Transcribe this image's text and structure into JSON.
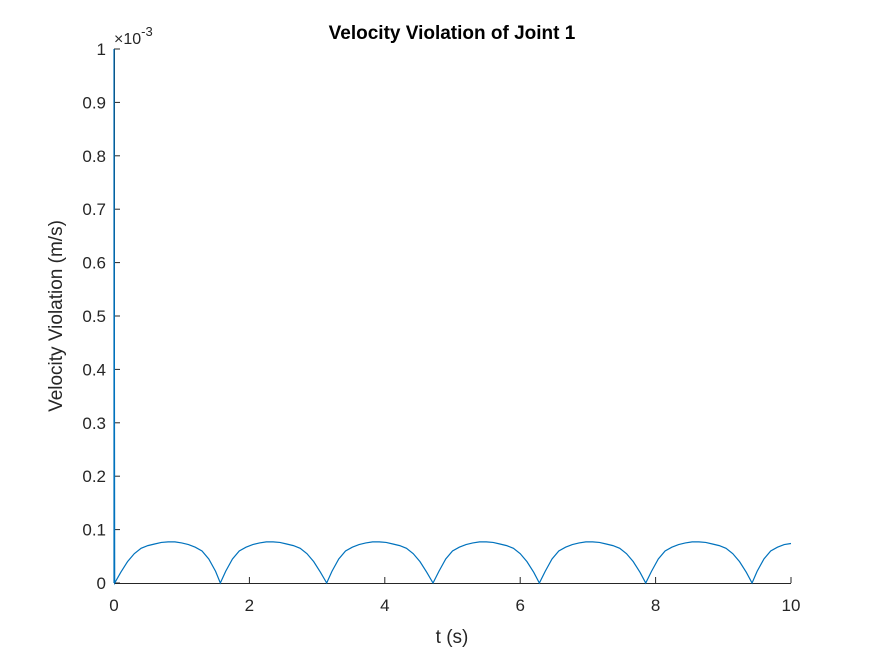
{
  "chart_data": {
    "type": "line",
    "title": "Velocity Violation of Joint 1",
    "xlabel": "t (s)",
    "ylabel": "Velocity Violation (m/s)",
    "y_exponent_label": "×10",
    "y_exponent_power": "-3",
    "y_scale": 0.001,
    "xlim": [
      0,
      10
    ],
    "ylim": [
      0,
      1
    ],
    "x_ticks": [
      "0",
      "2",
      "4",
      "6",
      "8",
      "10"
    ],
    "y_ticks": [
      "0",
      "0.1",
      "0.2",
      "0.3",
      "0.4",
      "0.5",
      "0.6",
      "0.7",
      "0.8",
      "0.9",
      "1"
    ],
    "grid": false,
    "line_color": "#0072BD",
    "series": [
      {
        "x": [
          0,
          0,
          0.01,
          0.1,
          0.2,
          0.3,
          0.4,
          0.5,
          0.6,
          0.7,
          0.8,
          0.9,
          1.0,
          1.1,
          1.2,
          1.3,
          1.4,
          1.5,
          1.5708,
          1.65,
          1.75,
          1.85,
          1.95,
          2.05,
          2.15,
          2.25,
          2.35,
          2.45,
          2.55,
          2.65,
          2.75,
          2.85,
          2.95,
          3.05,
          3.1416,
          3.22,
          3.32,
          3.42,
          3.52,
          3.62,
          3.72,
          3.82,
          3.92,
          4.02,
          4.12,
          4.22,
          4.32,
          4.42,
          4.52,
          4.62,
          4.7124,
          4.8,
          4.9,
          5.0,
          5.1,
          5.2,
          5.3,
          5.4,
          5.5,
          5.6,
          5.7,
          5.8,
          5.9,
          6.0,
          6.1,
          6.2,
          6.2832,
          6.37,
          6.47,
          6.57,
          6.67,
          6.77,
          6.87,
          6.97,
          7.07,
          7.17,
          7.27,
          7.37,
          7.47,
          7.57,
          7.67,
          7.77,
          7.854,
          7.94,
          8.04,
          8.14,
          8.24,
          8.34,
          8.44,
          8.54,
          8.64,
          8.74,
          8.84,
          8.94,
          9.04,
          9.14,
          9.24,
          9.34,
          9.4248,
          9.5,
          9.6,
          9.7,
          9.8,
          9.9,
          10.0
        ],
        "y": [
          0,
          1.0,
          0.0,
          0.02,
          0.04,
          0.055,
          0.065,
          0.07,
          0.073,
          0.076,
          0.077,
          0.077,
          0.075,
          0.072,
          0.067,
          0.06,
          0.045,
          0.022,
          0,
          0.022,
          0.045,
          0.06,
          0.067,
          0.072,
          0.075,
          0.077,
          0.077,
          0.076,
          0.073,
          0.07,
          0.065,
          0.055,
          0.04,
          0.02,
          0,
          0.022,
          0.045,
          0.06,
          0.067,
          0.072,
          0.075,
          0.077,
          0.077,
          0.076,
          0.073,
          0.07,
          0.065,
          0.055,
          0.04,
          0.02,
          0,
          0.022,
          0.045,
          0.06,
          0.067,
          0.072,
          0.075,
          0.077,
          0.077,
          0.076,
          0.073,
          0.07,
          0.065,
          0.055,
          0.04,
          0.02,
          0,
          0.022,
          0.045,
          0.06,
          0.067,
          0.072,
          0.075,
          0.077,
          0.077,
          0.076,
          0.073,
          0.07,
          0.065,
          0.055,
          0.04,
          0.02,
          0,
          0.022,
          0.045,
          0.06,
          0.067,
          0.072,
          0.075,
          0.077,
          0.077,
          0.076,
          0.073,
          0.07,
          0.065,
          0.055,
          0.04,
          0.02,
          0,
          0.022,
          0.045,
          0.06,
          0.067,
          0.072,
          0.074
        ]
      }
    ]
  }
}
